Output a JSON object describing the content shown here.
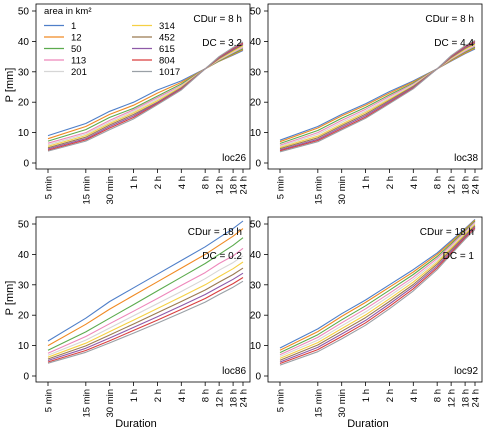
{
  "figure": {
    "ylabel": "P [mm]",
    "xlabel": "Duration",
    "legend_title": "area in  km²",
    "legend_placement": "top-left of first panel"
  },
  "series_colors": {
    "1": "#4f7fc9",
    "12": "#f08a24",
    "50": "#5cab4e",
    "113": "#ee88bb",
    "201": "#d6d6d6",
    "314": "#f5d044",
    "452": "#9a7a52",
    "615": "#8e5aa8",
    "804": "#d93f3f",
    "1017": "#9aa0a6"
  },
  "chart_data": [
    {
      "type": "line",
      "panel": "loc26",
      "corner_label": "loc26",
      "annotations": [
        "CDur = 8 h",
        "DC = 3.2"
      ],
      "x": [
        "5 min",
        "15 min",
        "30 min",
        "1 h",
        "2 h",
        "4 h",
        "8 h",
        "12 h",
        "18 h",
        "24 h"
      ],
      "ylim": [
        0,
        50
      ],
      "yticks": [
        0,
        10,
        20,
        30,
        40,
        50
      ],
      "grid": false,
      "legend": true,
      "series": [
        {
          "name": "1",
          "values": [
            9,
            13,
            17,
            20,
            24,
            27,
            31,
            33.5,
            35.5,
            37
          ]
        },
        {
          "name": "12",
          "values": [
            8,
            12,
            16,
            19,
            23,
            26.5,
            31,
            33.5,
            35.7,
            37.3
          ]
        },
        {
          "name": "50",
          "values": [
            7.2,
            11,
            15,
            18,
            22,
            26,
            31,
            33.6,
            36,
            37.6
          ]
        },
        {
          "name": "113",
          "values": [
            6.5,
            10,
            14,
            17.5,
            21.5,
            25.5,
            31,
            33.8,
            36.3,
            38
          ]
        },
        {
          "name": "201",
          "values": [
            6,
            9.5,
            13.5,
            17,
            21,
            25.3,
            31,
            34,
            36.5,
            38.3
          ]
        },
        {
          "name": "314",
          "values": [
            5.5,
            9,
            13,
            16.5,
            20.5,
            25,
            31,
            34.2,
            36.8,
            38.6
          ]
        },
        {
          "name": "452",
          "values": [
            5,
            8.5,
            12.5,
            16,
            20,
            24.7,
            31,
            34.4,
            37.1,
            38.9
          ]
        },
        {
          "name": "615",
          "values": [
            4.6,
            8,
            12,
            15.5,
            19.8,
            24.5,
            31,
            34.6,
            37.4,
            39.2
          ]
        },
        {
          "name": "804",
          "values": [
            4.2,
            7.6,
            11.5,
            15,
            19.5,
            24.2,
            31,
            34.8,
            37.7,
            39.5
          ]
        },
        {
          "name": "1017",
          "values": [
            3.9,
            7.2,
            11,
            14.5,
            19.2,
            24,
            31,
            35,
            38,
            39.8
          ]
        }
      ]
    },
    {
      "type": "line",
      "panel": "loc38",
      "corner_label": "loc38",
      "annotations": [
        "CDur = 8 h",
        "DC = 4.4"
      ],
      "x": [
        "5 min",
        "15 min",
        "30 min",
        "1 h",
        "2 h",
        "4 h",
        "8 h",
        "12 h",
        "18 h",
        "24 h"
      ],
      "ylim": [
        0,
        50
      ],
      "yticks": [
        0,
        10,
        20,
        30,
        40,
        50
      ],
      "grid": false,
      "series": [
        {
          "name": "1",
          "values": [
            7.5,
            12,
            16,
            19.5,
            23.5,
            27,
            31,
            33.5,
            36,
            37.5
          ]
        },
        {
          "name": "12",
          "values": [
            7,
            11.5,
            15.5,
            19,
            23,
            26.7,
            31,
            33.7,
            36.2,
            37.8
          ]
        },
        {
          "name": "50",
          "values": [
            6.4,
            10.7,
            14.7,
            18.3,
            22.4,
            26.3,
            31,
            33.9,
            36.5,
            38.1
          ]
        },
        {
          "name": "113",
          "values": [
            5.9,
            10,
            14,
            17.7,
            21.9,
            26,
            31,
            34.1,
            36.8,
            38.5
          ]
        },
        {
          "name": "201",
          "values": [
            5.5,
            9.4,
            13.4,
            17.1,
            21.4,
            25.7,
            31,
            34.3,
            37.1,
            38.8
          ]
        },
        {
          "name": "314",
          "values": [
            5.1,
            8.8,
            12.8,
            16.6,
            21,
            25.4,
            31,
            34.5,
            37.4,
            39.1
          ]
        },
        {
          "name": "452",
          "values": [
            4.7,
            8.3,
            12.3,
            16.1,
            20.6,
            25.2,
            31,
            34.7,
            37.7,
            39.4
          ]
        },
        {
          "name": "615",
          "values": [
            4.3,
            7.8,
            11.8,
            15.6,
            20.2,
            24.9,
            31,
            34.9,
            38,
            39.7
          ]
        },
        {
          "name": "804",
          "values": [
            4,
            7.4,
            11.3,
            15.1,
            19.8,
            24.6,
            31,
            35.1,
            38.3,
            40
          ]
        },
        {
          "name": "1017",
          "values": [
            3.7,
            7,
            10.9,
            14.7,
            19.5,
            24.4,
            31,
            35.3,
            38.6,
            40.3
          ]
        }
      ]
    },
    {
      "type": "line",
      "panel": "loc86",
      "corner_label": "loc86",
      "annotations": [
        "CDur = 18 h",
        "DC = 0.2"
      ],
      "x": [
        "5 min",
        "15 min",
        "30 min",
        "1 h",
        "2 h",
        "4 h",
        "8 h",
        "12 h",
        "18 h",
        "24 h"
      ],
      "ylim": [
        0,
        50
      ],
      "yticks": [
        0,
        10,
        20,
        30,
        40,
        50
      ],
      "grid": false,
      "series": [
        {
          "name": "1",
          "values": [
            11.5,
            19,
            24.5,
            29,
            33.5,
            38,
            42.5,
            45.5,
            48.5,
            51
          ]
        },
        {
          "name": "12",
          "values": [
            10,
            17,
            22,
            26.5,
            31,
            35.5,
            40,
            43,
            46,
            48.5
          ]
        },
        {
          "name": "50",
          "values": [
            8.5,
            14.5,
            19,
            23.5,
            28,
            32.5,
            37,
            40,
            43,
            45.5
          ]
        },
        {
          "name": "113",
          "values": [
            7.5,
            13,
            17.2,
            21.3,
            25.5,
            29.8,
            34,
            37,
            39.5,
            42
          ]
        },
        {
          "name": "201",
          "values": [
            6.8,
            11.8,
            15.8,
            19.8,
            23.8,
            27.8,
            32,
            34.8,
            37.3,
            39.5
          ]
        },
        {
          "name": "314",
          "values": [
            6.2,
            10.8,
            14.6,
            18.4,
            22.2,
            26.1,
            30,
            32.7,
            35.3,
            37.5
          ]
        },
        {
          "name": "452",
          "values": [
            5.6,
            9.9,
            13.5,
            17.1,
            20.8,
            24.5,
            28.3,
            30.9,
            33.4,
            35.5
          ]
        },
        {
          "name": "615",
          "values": [
            5.1,
            9.1,
            12.5,
            16,
            19.5,
            23.1,
            26.8,
            29.3,
            31.8,
            33.8
          ]
        },
        {
          "name": "804",
          "values": [
            4.6,
            8.4,
            11.6,
            15,
            18.4,
            21.9,
            25.5,
            28,
            30.4,
            32.4
          ]
        },
        {
          "name": "1017",
          "values": [
            4.2,
            7.8,
            10.9,
            14.1,
            17.4,
            20.8,
            24.3,
            26.8,
            29.2,
            31.2
          ]
        }
      ]
    },
    {
      "type": "line",
      "panel": "loc92",
      "corner_label": "loc92",
      "annotations": [
        "CDur = 18 h",
        "DC = 1"
      ],
      "x": [
        "5 min",
        "15 min",
        "30 min",
        "1 h",
        "2 h",
        "4 h",
        "8 h",
        "12 h",
        "18 h",
        "24 h"
      ],
      "ylim": [
        0,
        50
      ],
      "yticks": [
        0,
        10,
        20,
        30,
        40,
        50
      ],
      "grid": false,
      "series": [
        {
          "name": "1",
          "values": [
            9.2,
            15.5,
            20.5,
            25,
            30,
            35,
            40.5,
            44.5,
            48.5,
            51.5
          ]
        },
        {
          "name": "12",
          "values": [
            8.5,
            14.6,
            19.6,
            24.2,
            29.2,
            34.2,
            40,
            44,
            48.2,
            51.3
          ]
        },
        {
          "name": "50",
          "values": [
            7.7,
            13.6,
            18.5,
            23.1,
            28.2,
            33.4,
            39.3,
            43.5,
            47.8,
            51
          ]
        },
        {
          "name": "113",
          "values": [
            7,
            12.7,
            17.5,
            22.1,
            27.2,
            32.5,
            38.7,
            43,
            47.4,
            50.6
          ]
        },
        {
          "name": "201",
          "values": [
            6.4,
            11.8,
            16.5,
            21.1,
            26.3,
            31.7,
            38,
            42.5,
            47,
            50.2
          ]
        },
        {
          "name": "314",
          "values": [
            5.8,
            11,
            15.6,
            20.1,
            25.4,
            30.9,
            37.4,
            42,
            46.6,
            49.8
          ]
        },
        {
          "name": "452",
          "values": [
            5.2,
            10.2,
            14.7,
            19.2,
            24.5,
            30.1,
            36.8,
            41.5,
            46.2,
            49.4
          ]
        },
        {
          "name": "615",
          "values": [
            4.6,
            9.4,
            13.8,
            18.3,
            23.7,
            29.4,
            36.2,
            41,
            45.8,
            49
          ]
        },
        {
          "name": "804",
          "values": [
            4.1,
            8.7,
            13,
            17.5,
            22.9,
            28.7,
            35.6,
            40.5,
            45.4,
            48.6
          ]
        },
        {
          "name": "1017",
          "values": [
            3.6,
            8,
            12.2,
            16.7,
            22.1,
            28,
            35,
            40,
            45,
            48.2
          ]
        }
      ]
    }
  ]
}
